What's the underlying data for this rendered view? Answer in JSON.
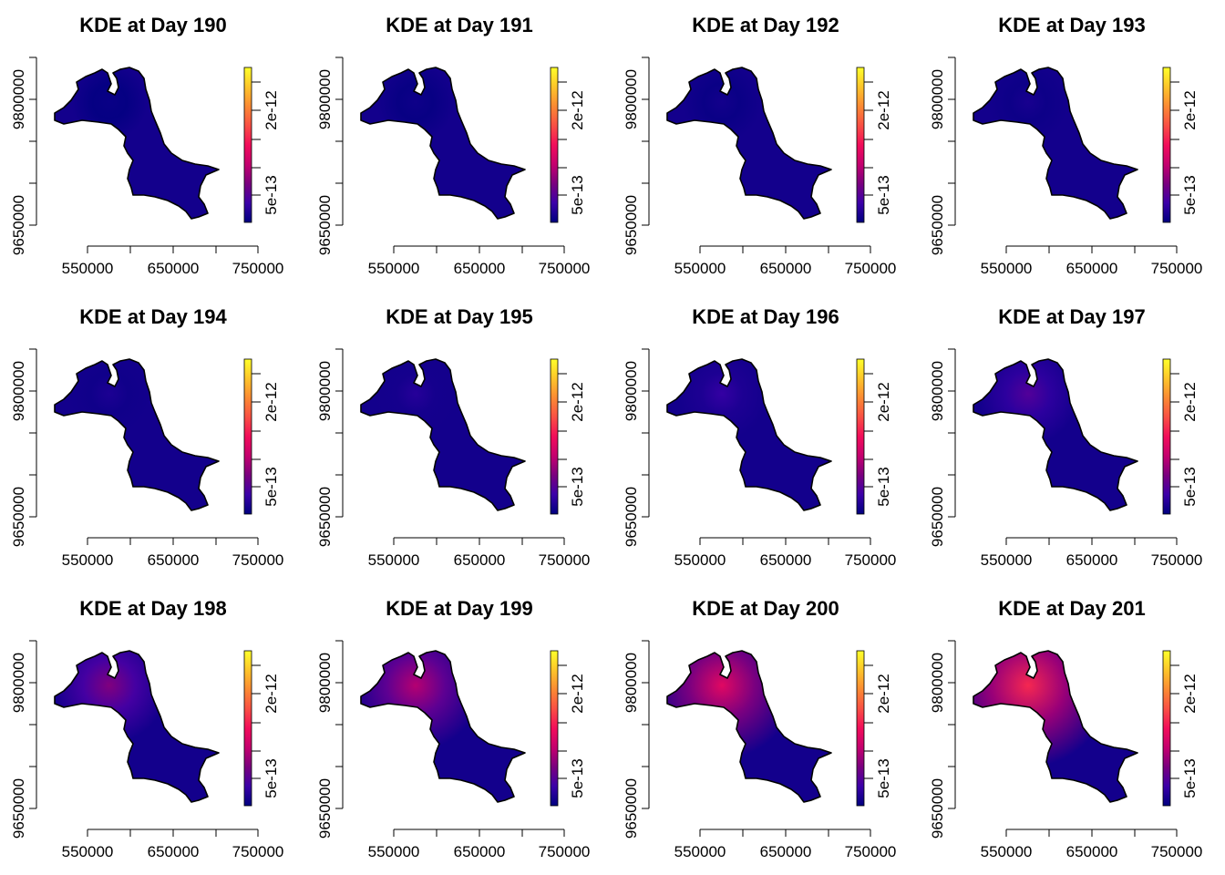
{
  "figure": {
    "layout": "3 rows x 4 columns",
    "colormap": [
      "#00007F",
      "#3B00A8",
      "#7A007F",
      "#C4006E",
      "#F20D5A",
      "#F94F44",
      "#FB8A33",
      "#FDC52A",
      "#FFFF2A"
    ]
  },
  "chart_data": [
    {
      "type": "heatmap",
      "title": "KDE at Day 190",
      "intensity": 0.02
    },
    {
      "type": "heatmap",
      "title": "KDE at Day 191",
      "intensity": 0.03
    },
    {
      "type": "heatmap",
      "title": "KDE at Day 192",
      "intensity": 0.04
    },
    {
      "type": "heatmap",
      "title": "KDE at Day 193",
      "intensity": 0.05
    },
    {
      "type": "heatmap",
      "title": "KDE at Day 194",
      "intensity": 0.06
    },
    {
      "type": "heatmap",
      "title": "KDE at Day 195",
      "intensity": 0.08
    },
    {
      "type": "heatmap",
      "title": "KDE at Day 196",
      "intensity": 0.11
    },
    {
      "type": "heatmap",
      "title": "KDE at Day 197",
      "intensity": 0.17
    },
    {
      "type": "heatmap",
      "title": "KDE at Day 198",
      "intensity": 0.26
    },
    {
      "type": "heatmap",
      "title": "KDE at Day 199",
      "intensity": 0.35
    },
    {
      "type": "heatmap",
      "title": "KDE at Day 200",
      "intensity": 0.45
    },
    {
      "type": "heatmap",
      "title": "KDE at Day 201",
      "intensity": 0.55
    }
  ],
  "axes": {
    "x_ticks": [
      "550000",
      "650000",
      "750000"
    ],
    "y_ticks": [
      "9650000",
      "9800000"
    ],
    "xlim": [
      505000,
      750000
    ],
    "ylim": [
      9620000,
      9830000
    ]
  },
  "colorbar": {
    "ticks": [
      "5e-13",
      "2e-12"
    ]
  }
}
